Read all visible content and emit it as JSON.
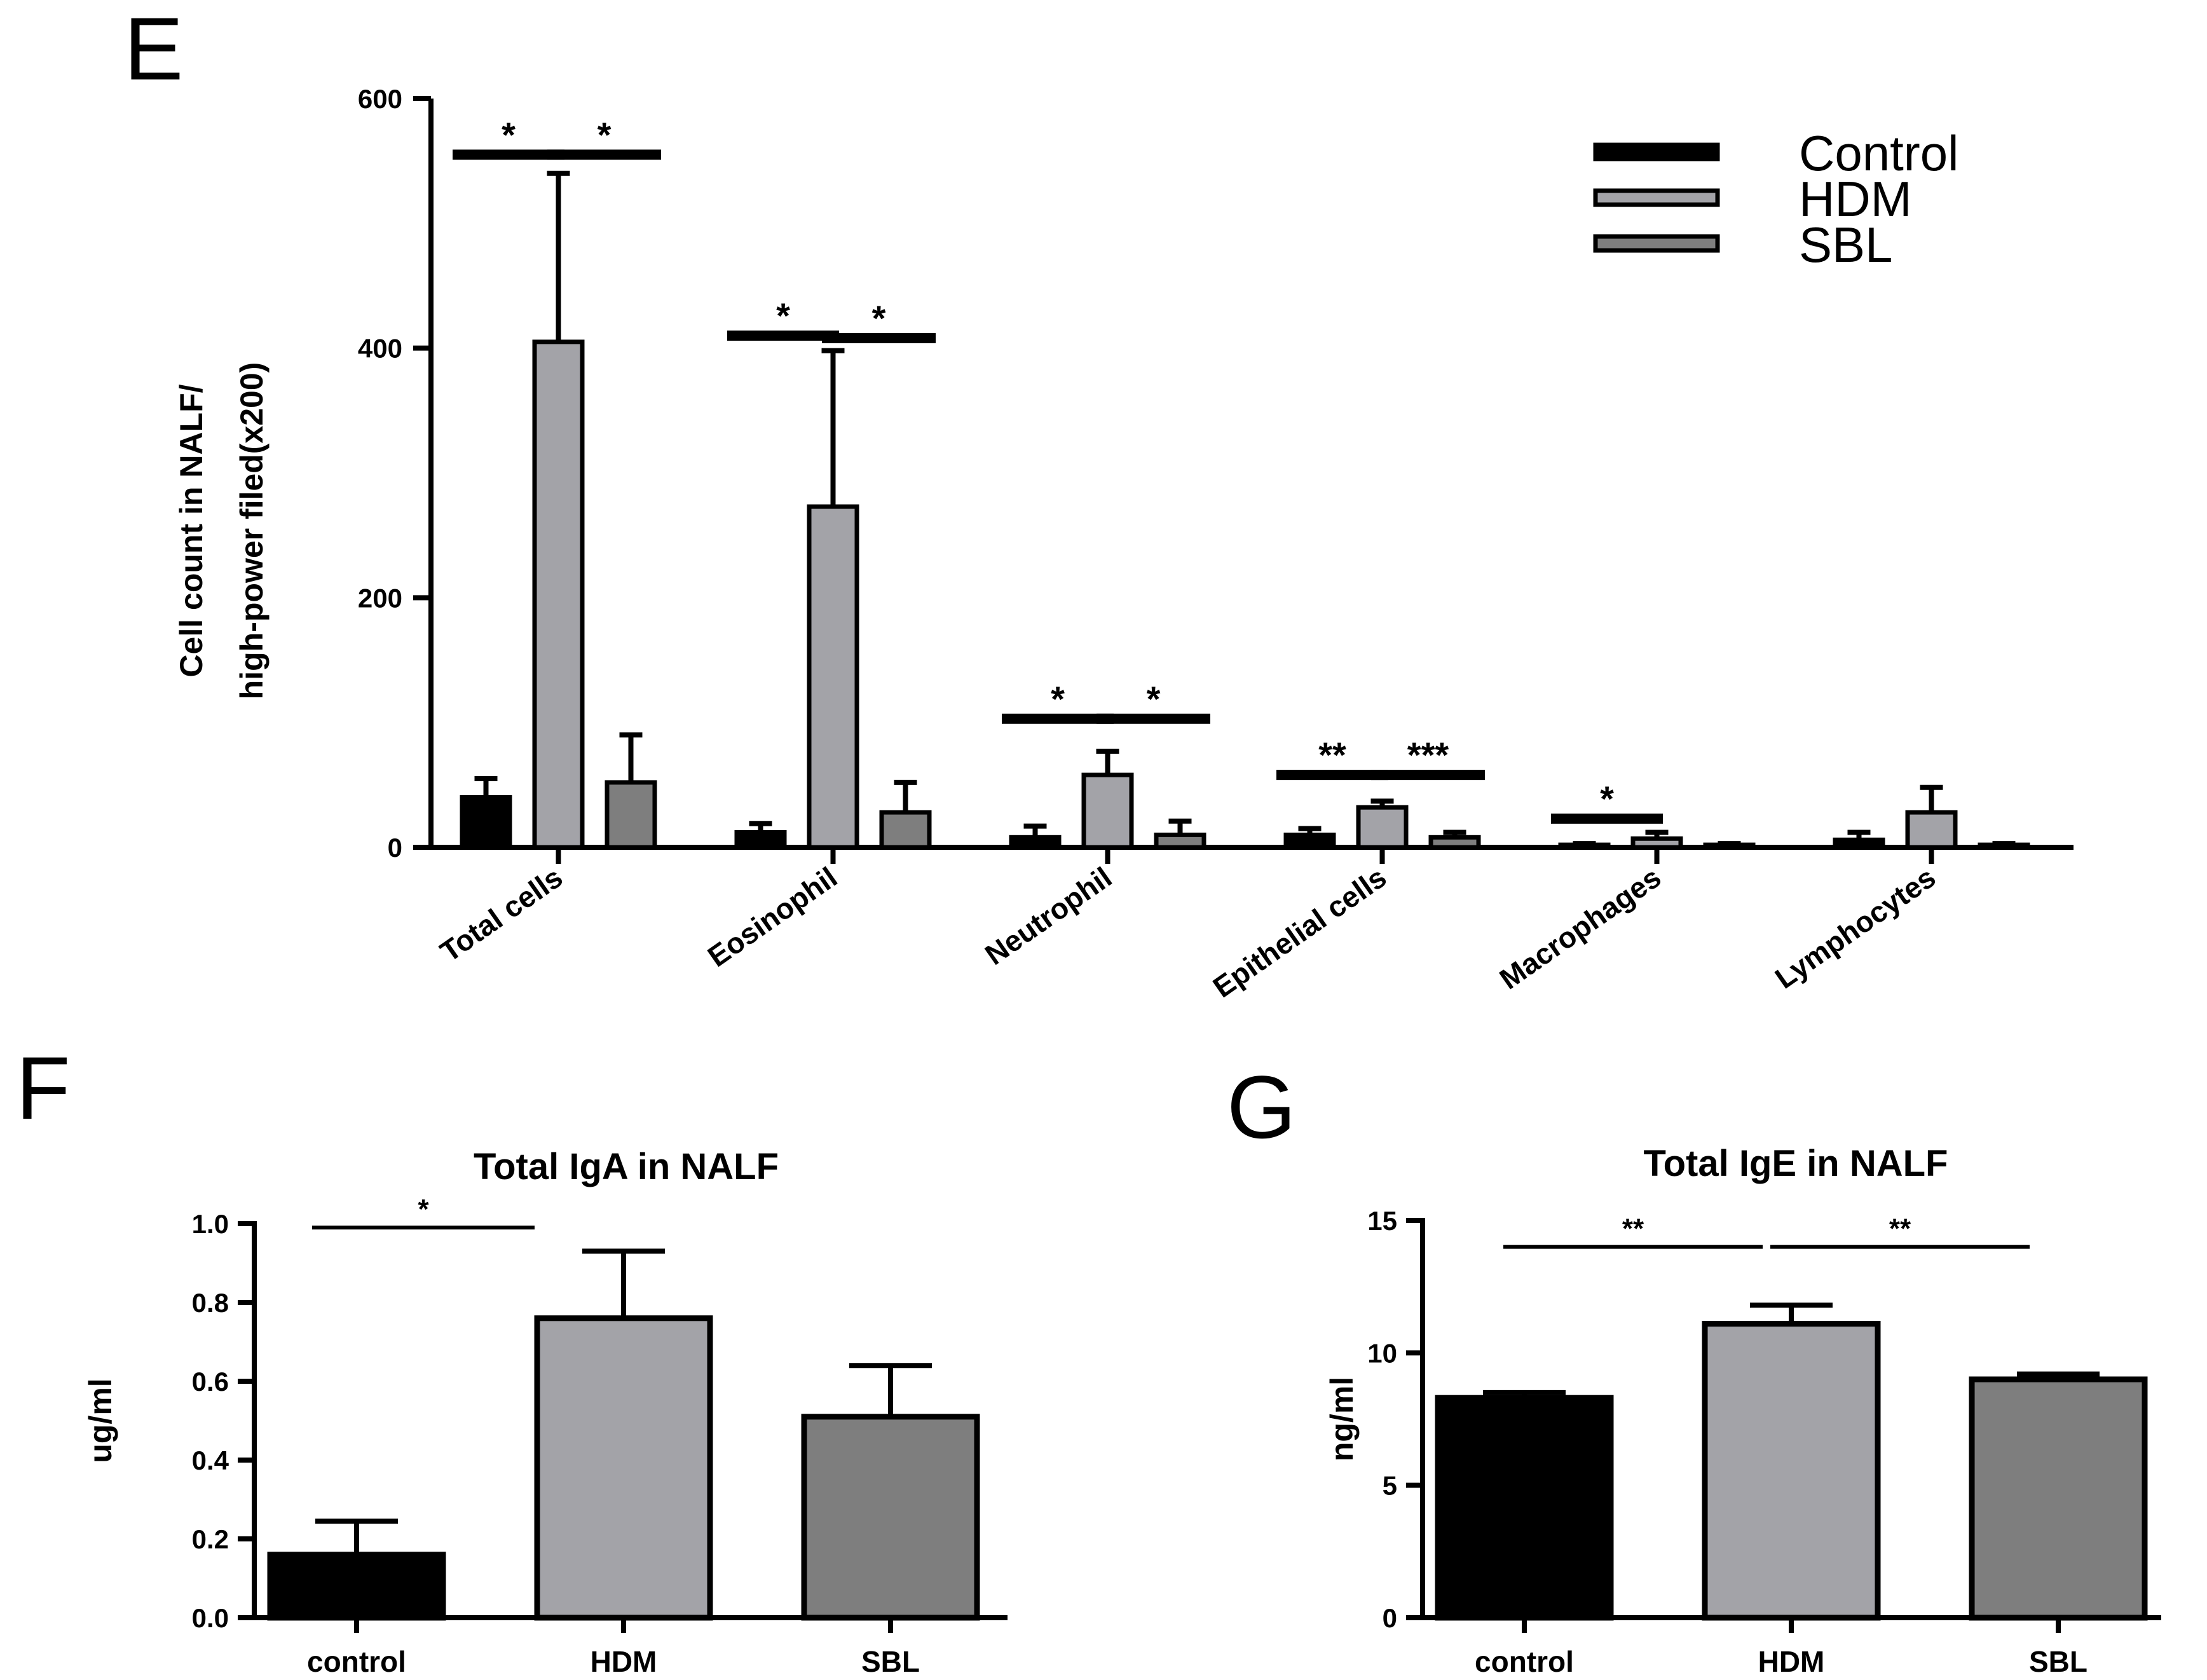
{
  "colors": {
    "control": "#000000",
    "hdm": "#a3a3a8",
    "sbl": "#7e7e7e",
    "ink": "#000000"
  },
  "chart_data": [
    {
      "panel": "E",
      "type": "bar",
      "title": "",
      "ylabel_lines": [
        "Cell count in NALF/",
        "high-power filed(x200)"
      ],
      "xlabel": "",
      "ylim": [
        0,
        600
      ],
      "yticks": [
        0,
        200,
        400,
        600
      ],
      "ytick_labels": [
        "0",
        "200",
        "400",
        "600"
      ],
      "categories": [
        "Total cells",
        "Eosinophil",
        "Neutrophil",
        "Epithelial cells",
        "Macrophages",
        "Lymphocytes"
      ],
      "legend": {
        "position": "top-right",
        "entries": [
          "Control",
          "HDM",
          "SBL"
        ]
      },
      "series": [
        {
          "name": "Control",
          "values": [
            40,
            12,
            8,
            10,
            2,
            6
          ],
          "errors": [
            15,
            7,
            9,
            5,
            1,
            6
          ]
        },
        {
          "name": "HDM",
          "values": [
            405,
            273,
            58,
            32,
            7,
            28
          ],
          "errors": [
            135,
            125,
            19,
            5,
            5,
            20
          ]
        },
        {
          "name": "SBL",
          "values": [
            52,
            28,
            10,
            8,
            2,
            2
          ],
          "errors": [
            38,
            24,
            11,
            4,
            1,
            1
          ]
        }
      ],
      "significance": [
        {
          "category": 0,
          "from": 0,
          "to": 1,
          "label": "*",
          "y": 555
        },
        {
          "category": 0,
          "from": 1,
          "to": 2,
          "label": "*",
          "y": 555
        },
        {
          "category": 1,
          "from": 0,
          "to": 1,
          "label": "*",
          "y": 410
        },
        {
          "category": 1,
          "from": 1,
          "to": 2,
          "label": "*",
          "y": 408
        },
        {
          "category": 2,
          "from": 0,
          "to": 1,
          "label": "*",
          "y": 103
        },
        {
          "category": 2,
          "from": 1,
          "to": 2,
          "label": "*",
          "y": 103
        },
        {
          "category": 3,
          "from": 0,
          "to": 1,
          "label": "**",
          "y": 58
        },
        {
          "category": 3,
          "from": 1,
          "to": 2,
          "label": "***",
          "y": 58
        },
        {
          "category": 4,
          "from": 0,
          "to": 1,
          "label": "*",
          "y": 23
        }
      ]
    },
    {
      "panel": "F",
      "type": "bar",
      "title": "Total IgA in NALF",
      "ylabel": "ug/ml",
      "xlabel": "",
      "ylim": [
        0,
        1.0
      ],
      "yticks": [
        0.0,
        0.2,
        0.4,
        0.6,
        0.8,
        1.0
      ],
      "ytick_labels": [
        "0.0",
        "0.2",
        "0.4",
        "0.6",
        "0.8",
        "1.0"
      ],
      "categories": [
        "control",
        "HDM",
        "SBL"
      ],
      "values": [
        0.16,
        0.76,
        0.51
      ],
      "errors": [
        0.085,
        0.17,
        0.13
      ],
      "significance": [
        {
          "from": 0,
          "to": 1,
          "label": "*",
          "y": 0.99
        }
      ]
    },
    {
      "panel": "G",
      "type": "bar",
      "title": "Total IgE in NALF",
      "ylabel": "ng/ml",
      "xlabel": "",
      "ylim": [
        0,
        15
      ],
      "yticks": [
        0,
        5,
        10,
        15
      ],
      "ytick_labels": [
        "0",
        "5",
        "10",
        "15"
      ],
      "categories": [
        "control",
        "HDM",
        "SBL"
      ],
      "values": [
        8.3,
        11.1,
        9.0
      ],
      "errors": [
        0.2,
        0.7,
        0.2
      ],
      "significance": [
        {
          "from": 0,
          "to": 1,
          "label": "**",
          "y": 14.0
        },
        {
          "from": 1,
          "to": 2,
          "label": "**",
          "y": 14.0
        }
      ]
    }
  ]
}
